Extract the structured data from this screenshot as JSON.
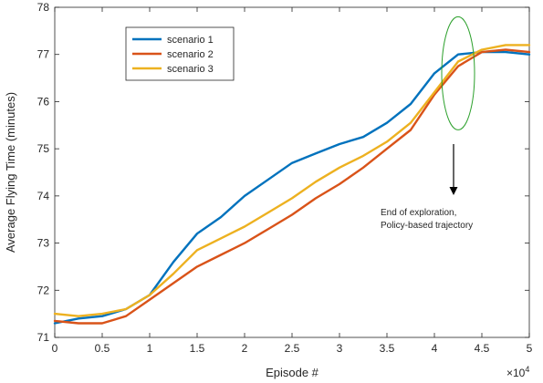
{
  "chart_data": {
    "type": "line",
    "xlabel": "Episode #",
    "ylabel": "Average Flying Time (minutes)",
    "x_exponent_label": "×10",
    "x_exponent_power": "4",
    "xlim": [
      0,
      5
    ],
    "ylim": [
      71,
      78
    ],
    "xticks": [
      0,
      0.5,
      1,
      1.5,
      2,
      2.5,
      3,
      3.5,
      4,
      4.5,
      5
    ],
    "xtick_labels": [
      "0",
      "0.5",
      "1",
      "1.5",
      "2",
      "2.5",
      "3",
      "3.5",
      "4",
      "4.5",
      "5"
    ],
    "yticks": [
      71,
      72,
      73,
      74,
      75,
      76,
      77,
      78
    ],
    "ytick_labels": [
      "71",
      "72",
      "73",
      "74",
      "75",
      "76",
      "77",
      "78"
    ],
    "grid": false,
    "legend_position": "top-left",
    "series": [
      {
        "name": "scenario 1",
        "color": "#0072BD",
        "x": [
          0,
          0.25,
          0.5,
          0.75,
          1.0,
          1.25,
          1.5,
          1.75,
          2.0,
          2.25,
          2.5,
          2.75,
          3.0,
          3.25,
          3.5,
          3.75,
          4.0,
          4.25,
          4.5,
          4.75,
          5.0
        ],
        "y": [
          71.3,
          71.4,
          71.45,
          71.6,
          71.9,
          72.6,
          73.2,
          73.55,
          74.0,
          74.35,
          74.7,
          74.9,
          75.1,
          75.25,
          75.55,
          75.95,
          76.6,
          77.0,
          77.05,
          77.05,
          77.0
        ]
      },
      {
        "name": "scenario 2",
        "color": "#D95319",
        "x": [
          0,
          0.25,
          0.5,
          0.75,
          1.0,
          1.25,
          1.5,
          1.75,
          2.0,
          2.25,
          2.5,
          2.75,
          3.0,
          3.25,
          3.5,
          3.75,
          4.0,
          4.25,
          4.5,
          4.75,
          5.0
        ],
        "y": [
          71.35,
          71.3,
          71.3,
          71.45,
          71.8,
          72.15,
          72.5,
          72.75,
          73.0,
          73.3,
          73.6,
          73.95,
          74.25,
          74.6,
          75.0,
          75.4,
          76.15,
          76.75,
          77.05,
          77.1,
          77.05
        ]
      },
      {
        "name": "scenario 3",
        "color": "#EDB120",
        "x": [
          0,
          0.25,
          0.5,
          0.75,
          1.0,
          1.25,
          1.5,
          1.75,
          2.0,
          2.25,
          2.5,
          2.75,
          3.0,
          3.25,
          3.5,
          3.75,
          4.0,
          4.25,
          4.5,
          4.75,
          5.0
        ],
        "y": [
          71.5,
          71.45,
          71.5,
          71.6,
          71.9,
          72.35,
          72.85,
          73.1,
          73.35,
          73.65,
          73.95,
          74.3,
          74.6,
          74.85,
          75.15,
          75.55,
          76.2,
          76.85,
          77.1,
          77.2,
          77.2
        ]
      }
    ],
    "annotation": {
      "lines": [
        "End of exploration,",
        "Policy-based trajectory"
      ],
      "ellipse_center_x": 4.25,
      "ellipse_center_y": 76.6,
      "ellipse_color": "#2CA02C"
    }
  }
}
